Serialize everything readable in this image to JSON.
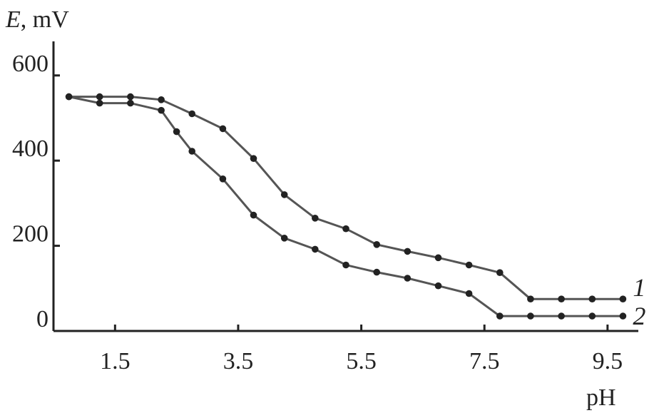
{
  "chart_data": {
    "type": "line",
    "ylabel_var": "E",
    "ylabel_unit": ", mV",
    "xlabel": "pH",
    "xlim": [
      0.5,
      10.0
    ],
    "ylim": [
      0,
      680
    ],
    "xticks": [
      1.5,
      3.5,
      5.5,
      7.5,
      9.5
    ],
    "xtick_labels": [
      "1.5",
      "3.5",
      "5.5",
      "7.5",
      "9.5"
    ],
    "yticks": [
      0,
      200,
      400,
      600
    ],
    "ytick_labels": [
      "0",
      "200",
      "400",
      "600"
    ],
    "grid": false,
    "series": [
      {
        "name": "1",
        "x": [
          0.75,
          1.25,
          1.75,
          2.25,
          2.75,
          3.25,
          3.75,
          4.25,
          4.75,
          5.25,
          5.75,
          6.25,
          6.75,
          7.25,
          7.75,
          8.25,
          8.75,
          9.25,
          9.75
        ],
        "y": [
          550,
          550,
          550,
          543,
          510,
          475,
          405,
          320,
          265,
          240,
          203,
          187,
          172,
          155,
          137,
          75,
          75,
          75,
          75
        ]
      },
      {
        "name": "2",
        "x": [
          0.75,
          1.25,
          1.75,
          2.25,
          2.5,
          2.75,
          3.25,
          3.75,
          4.25,
          4.75,
          5.25,
          5.75,
          6.25,
          6.75,
          7.25,
          7.75,
          8.25,
          8.75,
          9.25,
          9.75
        ],
        "y": [
          550,
          535,
          535,
          518,
          468,
          422,
          357,
          272,
          218,
          192,
          155,
          138,
          124,
          106,
          88,
          35,
          35,
          35,
          35,
          35
        ]
      }
    ]
  }
}
